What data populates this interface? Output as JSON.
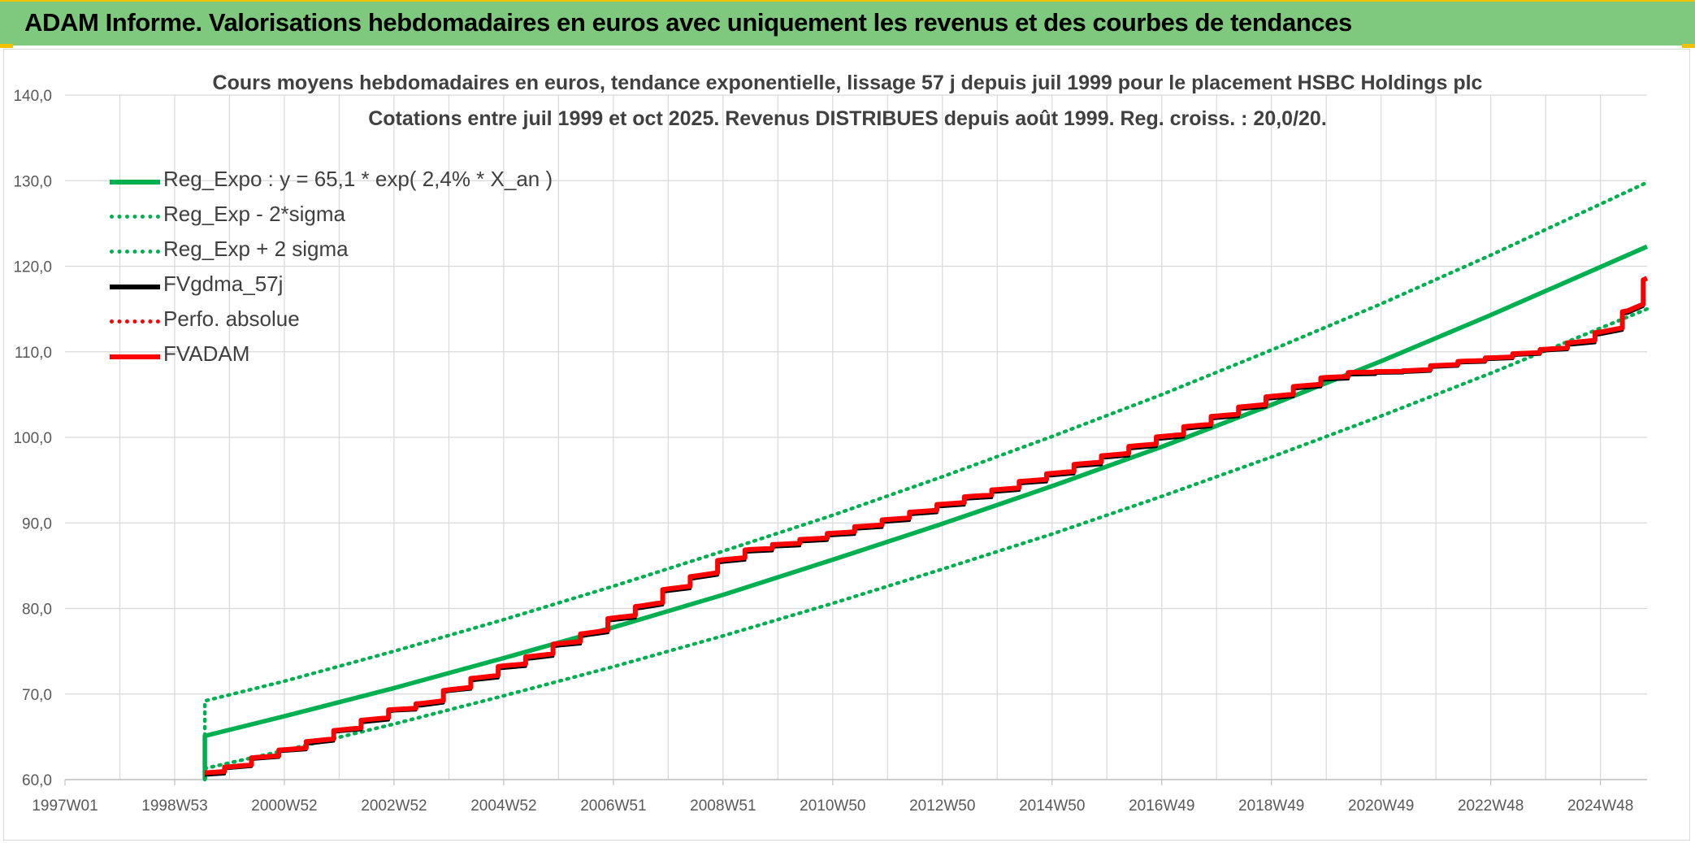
{
  "header": {
    "title": "ADAM Informe. Valorisations hebdomadaires en euros avec uniquement les revenus et des courbes de tendances"
  },
  "colors": {
    "header_bg": "#7fc97f",
    "accent": "#f2c200",
    "green": "#00b050",
    "black": "#000000",
    "red": "#ff0000",
    "grid": "#d9d9d9"
  },
  "chart_data": {
    "type": "line",
    "title_line1": "Cours moyens hebdomadaires en euros, tendance exponentielle, lissage 57 j depuis juil 1999 pour le placement HSBC Holdings plc",
    "title_line2": "Cotations entre juil 1999 et oct 2025. Revenus DISTRIBUES depuis août 1999. Reg. croiss. : 20,0/20.",
    "x_ticks": [
      "1997W01",
      "1998W53",
      "2000W52",
      "2002W52",
      "2004W52",
      "2006W51",
      "2008W51",
      "2010W50",
      "2012W50",
      "2014W50",
      "2016W49",
      "2018W49",
      "2020W49",
      "2022W48",
      "2024W48"
    ],
    "x_tick_years": [
      1997.0,
      1999.0,
      2001.0,
      2003.0,
      2005.0,
      2007.0,
      2009.0,
      2011.0,
      2013.0,
      2015.0,
      2017.0,
      2019.0,
      2021.0,
      2023.0,
      2025.0
    ],
    "xlim": [
      1997.0,
      2025.85
    ],
    "ylim": [
      60,
      140
    ],
    "y_ticks": [
      "60,0",
      "70,0",
      "80,0",
      "90,0",
      "100,0",
      "110,0",
      "120,0",
      "130,0",
      "140,0"
    ],
    "y_tick_values": [
      60,
      70,
      80,
      90,
      100,
      110,
      120,
      130,
      140
    ],
    "grid": true,
    "legend_position": "top-left",
    "legend": [
      {
        "label": "Reg_Expo : y = 65,1 * exp( 2,4% *  X_an )",
        "color": "#00b050",
        "style": "solid"
      },
      {
        "label": "Reg_Exp - 2*sigma",
        "color": "#00b050",
        "style": "dotted"
      },
      {
        "label": "Reg_Exp + 2 sigma",
        "color": "#00b050",
        "style": "dotted"
      },
      {
        "label": "FVgdma_57j",
        "color": "#000000",
        "style": "solid"
      },
      {
        "label": "Perfo. absolue",
        "color": "#ff0000",
        "style": "dotted"
      },
      {
        "label": "FVADAM",
        "color": "#ff0000",
        "style": "solid"
      }
    ],
    "series": [
      {
        "name": "Reg_Expo : y = 65,1 * exp( 2,4% *  X_an )",
        "x": [
          1999.55,
          2001.0,
          2003.0,
          2005.0,
          2007.0,
          2009.0,
          2011.0,
          2013.0,
          2015.0,
          2017.0,
          2019.0,
          2021.0,
          2023.0,
          2025.85
        ],
        "y": [
          65.1,
          67.4,
          70.7,
          74.2,
          77.8,
          81.6,
          85.7,
          89.9,
          94.3,
          98.9,
          103.8,
          108.9,
          114.3,
          122.3
        ]
      },
      {
        "name": "Reg_Exp - 2*sigma",
        "x": [
          1999.55,
          2001.0,
          2003.0,
          2005.0,
          2007.0,
          2009.0,
          2011.0,
          2013.0,
          2015.0,
          2017.0,
          2019.0,
          2021.0,
          2023.0,
          2025.85
        ],
        "y": [
          61.3,
          63.4,
          66.5,
          69.8,
          73.2,
          76.8,
          80.6,
          84.6,
          88.7,
          93.1,
          97.7,
          102.5,
          107.5,
          115.0
        ]
      },
      {
        "name": "Reg_Exp + 2 sigma",
        "x": [
          1999.55,
          2001.0,
          2003.0,
          2005.0,
          2007.0,
          2009.0,
          2011.0,
          2013.0,
          2015.0,
          2017.0,
          2019.0,
          2021.0,
          2023.0,
          2025.85
        ],
        "y": [
          69.2,
          71.5,
          75.0,
          78.7,
          82.6,
          86.7,
          90.9,
          95.4,
          100.1,
          105.0,
          110.2,
          115.6,
          121.3,
          129.8
        ]
      },
      {
        "name": "FVgdma_57j",
        "x": [
          1999.55,
          2000.0,
          2000.5,
          2001.0,
          2001.5,
          2002.0,
          2002.5,
          2003.0,
          2003.5,
          2004.0,
          2004.5,
          2005.0,
          2005.5,
          2006.0,
          2006.5,
          2007.0,
          2007.5,
          2008.0,
          2008.5,
          2009.0,
          2009.5,
          2010.0,
          2010.5,
          2011.0,
          2011.5,
          2012.0,
          2012.5,
          2013.0,
          2013.5,
          2014.0,
          2014.5,
          2015.0,
          2015.5,
          2016.0,
          2016.5,
          2017.0,
          2017.5,
          2018.0,
          2018.5,
          2019.0,
          2019.5,
          2020.0,
          2020.5,
          2021.0,
          2021.5,
          2022.0,
          2022.5,
          2023.0,
          2023.5,
          2024.0,
          2024.5,
          2025.0,
          2025.5,
          2025.85
        ],
        "y": [
          60.5,
          61.3,
          62.4,
          63.3,
          64.2,
          65.6,
          66.7,
          68.0,
          68.6,
          70.3,
          71.6,
          73.0,
          74.1,
          75.6,
          76.8,
          78.6,
          80.0,
          82.0,
          83.5,
          85.4,
          86.6,
          87.2,
          87.8,
          88.5,
          89.3,
          90.1,
          91.0,
          91.9,
          92.8,
          93.6,
          94.6,
          95.5,
          96.6,
          97.6,
          98.7,
          99.8,
          101.0,
          102.2,
          103.3,
          104.5,
          105.7,
          106.7,
          107.3,
          107.5,
          107.6,
          108.2,
          108.7,
          109.1,
          109.6,
          110.1,
          110.8,
          112.0,
          114.5,
          118.5
        ]
      },
      {
        "name": "FVADAM",
        "x": [
          1999.55,
          2000.0,
          2000.5,
          2001.0,
          2001.5,
          2002.0,
          2002.5,
          2003.0,
          2003.5,
          2004.0,
          2004.5,
          2005.0,
          2005.5,
          2006.0,
          2006.5,
          2007.0,
          2007.5,
          2008.0,
          2008.5,
          2009.0,
          2009.5,
          2010.0,
          2010.5,
          2011.0,
          2011.5,
          2012.0,
          2012.5,
          2013.0,
          2013.5,
          2014.0,
          2014.5,
          2015.0,
          2015.5,
          2016.0,
          2016.5,
          2017.0,
          2017.5,
          2018.0,
          2018.5,
          2019.0,
          2019.5,
          2020.0,
          2020.5,
          2021.0,
          2021.5,
          2022.0,
          2022.5,
          2023.0,
          2023.5,
          2024.0,
          2024.5,
          2025.0,
          2025.5,
          2025.85
        ],
        "y": [
          60.8,
          61.5,
          62.6,
          63.5,
          64.5,
          65.8,
          67.0,
          68.2,
          68.9,
          70.5,
          71.9,
          73.3,
          74.4,
          75.9,
          77.1,
          78.9,
          80.3,
          82.3,
          83.8,
          85.7,
          86.9,
          87.5,
          88.1,
          88.8,
          89.6,
          90.4,
          91.3,
          92.2,
          93.1,
          93.9,
          94.9,
          95.8,
          96.9,
          97.9,
          99.0,
          100.1,
          101.3,
          102.5,
          103.6,
          104.8,
          106.0,
          107.0,
          107.6,
          107.7,
          107.8,
          108.4,
          108.9,
          109.3,
          109.8,
          110.3,
          111.1,
          112.3,
          114.8,
          118.6
        ]
      }
    ]
  }
}
